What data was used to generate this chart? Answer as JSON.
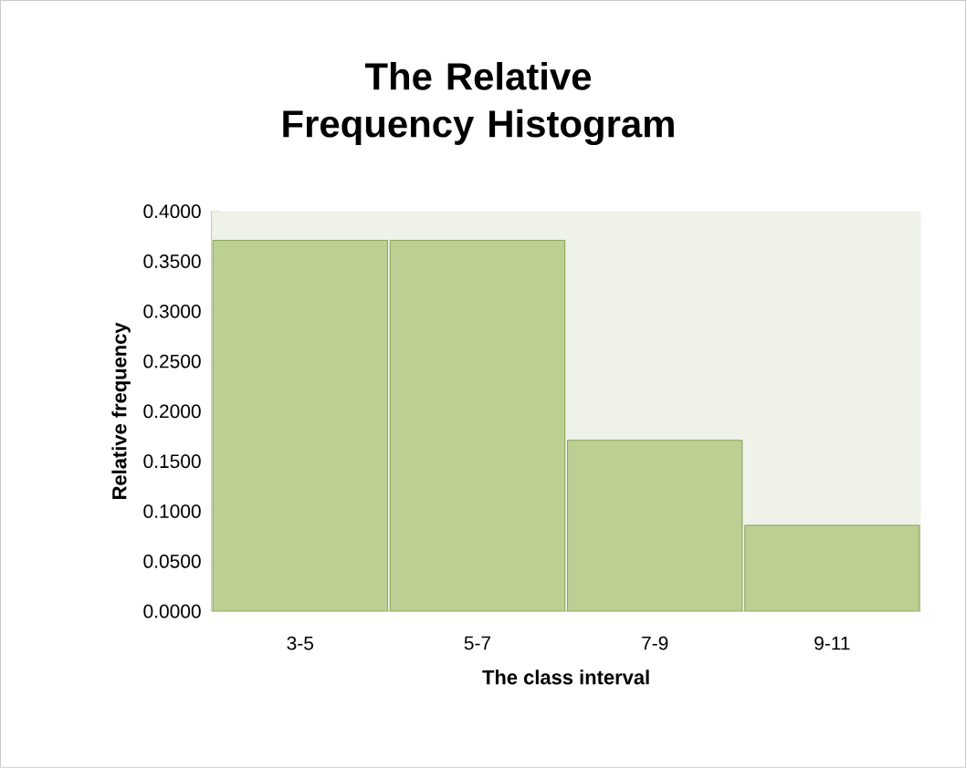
{
  "chart_data": {
    "type": "bar",
    "title": "The Relative Frequency Histogram",
    "xlabel": "The class interval",
    "ylabel": "Relative frequency",
    "categories": [
      "3-5",
      "5-7",
      "7-9",
      "9-11"
    ],
    "values": [
      0.371,
      0.371,
      0.171,
      0.086
    ],
    "color": "#bcd094",
    "ylim": [
      0,
      0.4
    ],
    "yticks": [
      {
        "value": 0,
        "label": "0.0000"
      },
      {
        "value": 0.05,
        "label": "0.0500"
      },
      {
        "value": 0.1,
        "label": "0.1000"
      },
      {
        "value": 0.15,
        "label": "0.1500"
      },
      {
        "value": 0.2,
        "label": "0.2000"
      },
      {
        "value": 0.25,
        "label": "0.2500"
      },
      {
        "value": 0.3,
        "label": "0.3000"
      },
      {
        "value": 0.35,
        "label": "0.3500"
      },
      {
        "value": 0.4,
        "label": "0.4000"
      }
    ],
    "grid": false
  }
}
